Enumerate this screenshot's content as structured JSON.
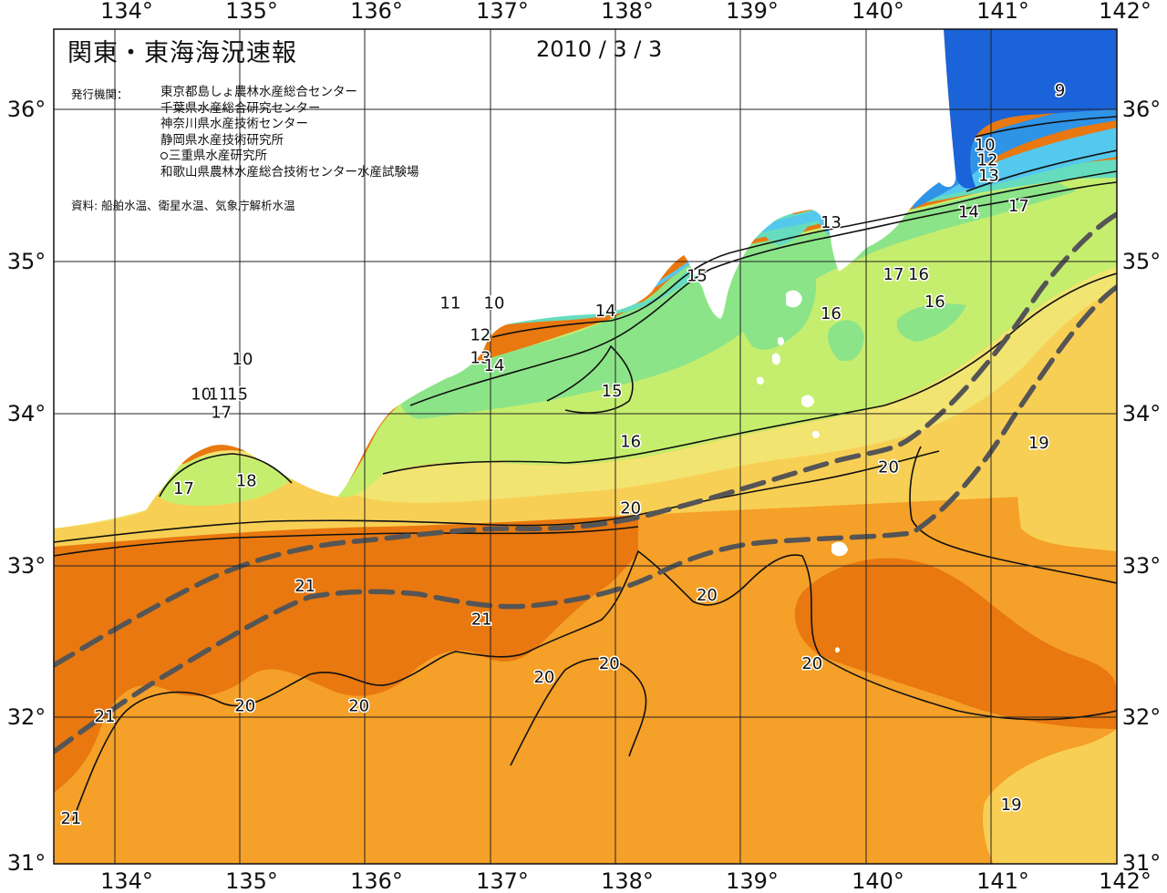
{
  "map": {
    "title": "関東・東海海況速報",
    "date": "2010 / 3 / 3",
    "issuers_heading": "発行機関：",
    "issuers": [
      "東京都島しょ農林水産総合センター",
      "千葉県水産総合研究センター",
      "神奈川県水産技術センター",
      "静岡県水産技術研究所",
      "三重県水産研究所",
      "和歌山県農林水産総合技術センター水産試験場"
    ],
    "data_source": "資料: 船舶水温、衛星水温、気象庁解析水温",
    "longitude_labels": [
      "134°",
      "135°",
      "136°",
      "137°",
      "138°",
      "139°",
      "140°",
      "141°",
      "142°"
    ],
    "latitude_labels": [
      "36°",
      "35°",
      "34°",
      "33°",
      "32°",
      "31°"
    ],
    "contour_labels": [
      {
        "text": "9",
        "lon": 141.55,
        "lat": 36.12
      },
      {
        "text": "10",
        "lon": 140.95,
        "lat": 35.76
      },
      {
        "text": "12",
        "lon": 140.97,
        "lat": 35.66
      },
      {
        "text": "13",
        "lon": 140.98,
        "lat": 35.56
      },
      {
        "text": "14",
        "lon": 140.82,
        "lat": 35.32
      },
      {
        "text": "17",
        "lon": 141.22,
        "lat": 35.36
      },
      {
        "text": "13",
        "lon": 139.72,
        "lat": 35.25
      },
      {
        "text": "17",
        "lon": 140.22,
        "lat": 34.91
      },
      {
        "text": "16",
        "lon": 140.42,
        "lat": 34.91
      },
      {
        "text": "16",
        "lon": 140.55,
        "lat": 34.73
      },
      {
        "text": "16",
        "lon": 139.72,
        "lat": 34.65
      },
      {
        "text": "15",
        "lon": 138.65,
        "lat": 34.9
      },
      {
        "text": "14",
        "lon": 137.92,
        "lat": 34.67
      },
      {
        "text": "11",
        "lon": 136.68,
        "lat": 34.72
      },
      {
        "text": "10",
        "lon": 137.03,
        "lat": 34.72
      },
      {
        "text": "12",
        "lon": 136.92,
        "lat": 34.51
      },
      {
        "text": "13",
        "lon": 136.92,
        "lat": 34.36
      },
      {
        "text": "14",
        "lon": 137.03,
        "lat": 34.31
      },
      {
        "text": "15",
        "lon": 137.97,
        "lat": 34.14
      },
      {
        "text": "16",
        "lon": 138.12,
        "lat": 33.81
      },
      {
        "text": "10",
        "lon": 135.02,
        "lat": 34.35
      },
      {
        "text": "10",
        "lon": 134.69,
        "lat": 34.12
      },
      {
        "text": "11",
        "lon": 134.83,
        "lat": 34.12
      },
      {
        "text": "15",
        "lon": 134.98,
        "lat": 34.12
      },
      {
        "text": "17",
        "lon": 134.85,
        "lat": 34.0
      },
      {
        "text": "17",
        "lon": 134.55,
        "lat": 33.5
      },
      {
        "text": "18",
        "lon": 135.05,
        "lat": 33.55
      },
      {
        "text": "20",
        "lon": 138.12,
        "lat": 33.37
      },
      {
        "text": "20",
        "lon": 140.18,
        "lat": 33.64
      },
      {
        "text": "19",
        "lon": 141.38,
        "lat": 33.8
      },
      {
        "text": "21",
        "lon": 135.52,
        "lat": 32.86
      },
      {
        "text": "21",
        "lon": 136.93,
        "lat": 32.64
      },
      {
        "text": "20",
        "lon": 138.73,
        "lat": 32.8
      },
      {
        "text": "20",
        "lon": 137.95,
        "lat": 32.35
      },
      {
        "text": "20",
        "lon": 137.43,
        "lat": 32.26
      },
      {
        "text": "20",
        "lon": 139.57,
        "lat": 32.35
      },
      {
        "text": "20",
        "lon": 135.04,
        "lat": 32.07
      },
      {
        "text": "20",
        "lon": 135.95,
        "lat": 32.07
      },
      {
        "text": "21",
        "lon": 133.92,
        "lat": 32.0
      },
      {
        "text": "21",
        "lon": 133.65,
        "lat": 31.33
      },
      {
        "text": "19",
        "lon": 141.16,
        "lat": 31.42
      }
    ]
  },
  "colors": {
    "ocean_warmest": "#e8780f",
    "ocean_warm": "#f5a028",
    "ocean_cool_warm": "#f8cf55",
    "band_yellow": "#f2e470",
    "band_yellow_green": "#c6ee6e",
    "band_green": "#8ce488",
    "band_teal": "#66dcbe",
    "band_cyan": "#55c8ee",
    "band_blue": "#2f93e6",
    "band_deep_blue": "#1a63d8",
    "land": "#ffffff",
    "no_data": "#ffffff",
    "kuroshio_axis": "#555555",
    "grid": "#222222"
  }
}
